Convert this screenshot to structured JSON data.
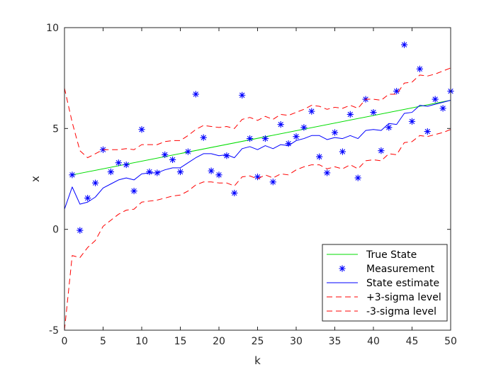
{
  "chart_data": {
    "type": "line",
    "xlabel": "k",
    "ylabel": "x",
    "xlim": [
      0,
      50
    ],
    "ylim": [
      -5,
      10
    ],
    "xticks": [
      0,
      5,
      10,
      15,
      20,
      25,
      30,
      35,
      40,
      45,
      50
    ],
    "yticks": [
      -5,
      0,
      5,
      10
    ],
    "grid": false,
    "legend_position": "bottom-right",
    "series": [
      {
        "name": "True State",
        "style": "line",
        "color": "#00dd00",
        "x": [
          1,
          50
        ],
        "y": [
          2.7,
          6.4
        ]
      },
      {
        "name": "Measurement",
        "style": "marker",
        "color": "#0000ff",
        "x": [
          1,
          2,
          3,
          4,
          5,
          6,
          7,
          8,
          9,
          10,
          11,
          12,
          13,
          14,
          15,
          16,
          17,
          18,
          19,
          20,
          21,
          22,
          23,
          24,
          25,
          26,
          27,
          28,
          29,
          30,
          31,
          32,
          33,
          34,
          35,
          36,
          37,
          38,
          39,
          40,
          41,
          42,
          43,
          44,
          45,
          46,
          47,
          48,
          49,
          50
        ],
        "y": [
          2.7,
          -0.05,
          1.55,
          2.3,
          3.95,
          2.85,
          3.3,
          3.2,
          1.9,
          4.95,
          2.85,
          2.8,
          3.7,
          3.45,
          2.85,
          3.85,
          6.7,
          4.55,
          2.9,
          2.7,
          3.65,
          1.8,
          6.65,
          4.5,
          2.6,
          4.5,
          2.35,
          5.2,
          4.25,
          4.6,
          5.05,
          5.85,
          3.6,
          2.8,
          4.8,
          3.85,
          5.7,
          2.55,
          6.45,
          5.8,
          3.9,
          5.05,
          6.85,
          9.15,
          5.35,
          7.95,
          4.85,
          6.45,
          6.0,
          6.85
        ]
      },
      {
        "name": "State estimate",
        "style": "line",
        "color": "#0000ff",
        "x": [
          0,
          1,
          2,
          3,
          4,
          5,
          6,
          7,
          8,
          9,
          10,
          11,
          12,
          13,
          14,
          15,
          16,
          17,
          18,
          19,
          20,
          21,
          22,
          23,
          24,
          25,
          26,
          27,
          28,
          29,
          30,
          31,
          32,
          33,
          34,
          35,
          36,
          37,
          38,
          39,
          40,
          41,
          42,
          43,
          44,
          45,
          46,
          47,
          48,
          49,
          50
        ],
        "y": [
          1.0,
          2.1,
          1.25,
          1.35,
          1.6,
          2.05,
          2.25,
          2.45,
          2.55,
          2.45,
          2.75,
          2.8,
          2.8,
          2.95,
          3.05,
          3.05,
          3.3,
          3.55,
          3.75,
          3.75,
          3.65,
          3.7,
          3.55,
          4.0,
          4.1,
          3.95,
          4.15,
          4.0,
          4.2,
          4.15,
          4.4,
          4.5,
          4.65,
          4.65,
          4.45,
          4.55,
          4.5,
          4.65,
          4.5,
          4.9,
          4.95,
          4.9,
          5.25,
          5.2,
          5.75,
          5.8,
          6.15,
          6.1,
          6.2,
          6.3,
          6.4
        ]
      },
      {
        "name": "+3-sigma level",
        "style": "dashed",
        "color": "#ff0000",
        "x": [
          0,
          1,
          2,
          3,
          4,
          5,
          6,
          7,
          8,
          9,
          10,
          11,
          12,
          13,
          14,
          15,
          16,
          17,
          18,
          19,
          20,
          21,
          22,
          23,
          24,
          25,
          26,
          27,
          28,
          29,
          30,
          31,
          32,
          33,
          34,
          35,
          36,
          37,
          38,
          39,
          40,
          41,
          42,
          43,
          44,
          45,
          46,
          47,
          48,
          49,
          50
        ],
        "y": [
          7.0,
          5.3,
          3.9,
          3.55,
          3.75,
          3.95,
          3.95,
          3.95,
          4.0,
          3.95,
          4.2,
          4.2,
          4.2,
          4.35,
          4.4,
          4.4,
          4.65,
          4.95,
          5.15,
          5.1,
          5.05,
          5.1,
          5.0,
          5.45,
          5.55,
          5.4,
          5.6,
          5.45,
          5.7,
          5.65,
          5.8,
          5.95,
          6.15,
          6.1,
          5.95,
          6.05,
          6.0,
          6.15,
          6.0,
          6.45,
          6.45,
          6.4,
          6.7,
          6.7,
          7.25,
          7.3,
          7.65,
          7.6,
          7.7,
          7.85,
          8.0
        ]
      },
      {
        "name": "-3-sigma level",
        "style": "dashed",
        "color": "#ff0000",
        "x": [
          0,
          1,
          2,
          3,
          4,
          5,
          6,
          7,
          8,
          9,
          10,
          11,
          12,
          13,
          14,
          15,
          16,
          17,
          18,
          19,
          20,
          21,
          22,
          23,
          24,
          25,
          26,
          27,
          28,
          29,
          30,
          31,
          32,
          33,
          34,
          35,
          36,
          37,
          38,
          39,
          40,
          41,
          42,
          43,
          44,
          45,
          46,
          47,
          48,
          49,
          50
        ],
        "y": [
          -5.0,
          -1.3,
          -1.4,
          -0.9,
          -0.55,
          0.15,
          0.45,
          0.75,
          0.95,
          1.0,
          1.35,
          1.4,
          1.45,
          1.55,
          1.65,
          1.7,
          1.9,
          2.2,
          2.35,
          2.35,
          2.3,
          2.3,
          2.15,
          2.6,
          2.65,
          2.5,
          2.7,
          2.55,
          2.75,
          2.7,
          2.95,
          3.1,
          3.2,
          3.2,
          3.0,
          3.1,
          3.0,
          3.2,
          3.0,
          3.4,
          3.45,
          3.4,
          3.75,
          3.7,
          4.3,
          4.35,
          4.65,
          4.6,
          4.7,
          4.8,
          4.95
        ]
      }
    ]
  }
}
